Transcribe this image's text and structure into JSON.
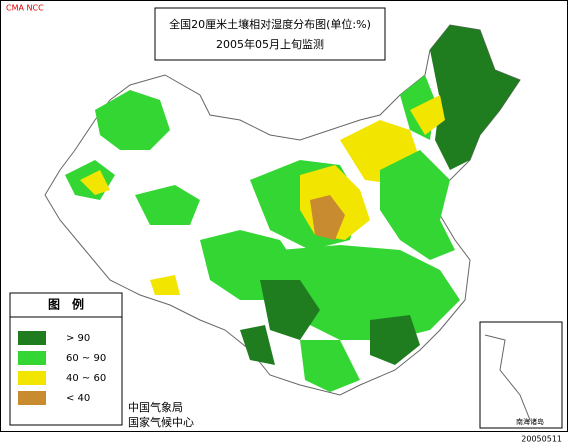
{
  "header": {
    "logo": "CMA NCC",
    "title": "全国20厘米土壤相对湿度分布图(单位:%)",
    "subtitle": "2005年05月上旬监测"
  },
  "legend": {
    "title": "图　例",
    "items": [
      {
        "label": "> 90",
        "color": "#1f7d1f"
      },
      {
        "label": "60 ~ 90",
        "color": "#33d633"
      },
      {
        "label": "40 ~ 60",
        "color": "#f2e600"
      },
      {
        "label": "< 40",
        "color": "#c98b2f"
      }
    ]
  },
  "footer": {
    "org": "中国气象局",
    "center": "国家气候中心",
    "date": "20050511"
  },
  "inset": {
    "label": "南海诸岛"
  }
}
